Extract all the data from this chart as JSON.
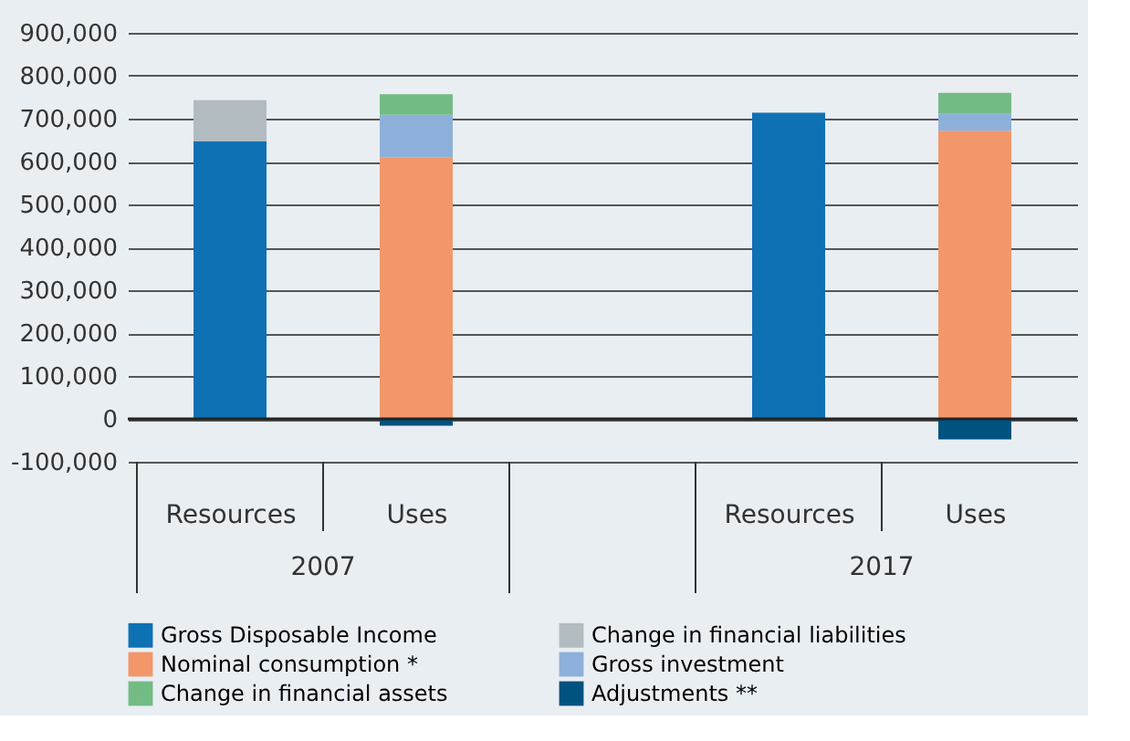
{
  "chart_data": {
    "type": "bar",
    "stacked": true,
    "categories": [
      "Resources",
      "Uses",
      null,
      "Resources",
      "Uses"
    ],
    "series": [
      {
        "name": "Gross Disposable Income",
        "color": "#0e71b4",
        "values": [
          647000,
          null,
          null,
          714000,
          null
        ]
      },
      {
        "name": "Change in financial liabilities",
        "color": "#b2bcc0",
        "values": [
          96000,
          null,
          null,
          null,
          null
        ]
      },
      {
        "name": "Nominal consumption *",
        "color": "#f2976a",
        "values": [
          null,
          610000,
          null,
          null,
          672000
        ]
      },
      {
        "name": "Gross investment",
        "color": "#8db0da",
        "values": [
          null,
          99000,
          null,
          null,
          39000
        ]
      },
      {
        "name": "Change in financial assets",
        "color": "#73bb84",
        "values": [
          null,
          48000,
          null,
          null,
          49000
        ]
      },
      {
        "name": "Adjustments **",
        "color": "#00527f",
        "values": [
          null,
          -16000,
          null,
          null,
          -48000
        ]
      }
    ],
    "annotations": [
      "2007",
      "2017"
    ],
    "ylim": [
      -100000,
      900000
    ],
    "yticks": [
      {
        "value": -100000,
        "label": "-100,000"
      },
      0,
      {
        "value": 100000,
        "label": "100,000"
      },
      {
        "value": 200000,
        "label": "200,000"
      },
      {
        "value": 300000,
        "label": "300,000"
      },
      {
        "value": 400000,
        "label": "400,000"
      },
      {
        "value": 500000,
        "label": "500,000"
      },
      {
        "value": 600000,
        "label": "600,000"
      },
      {
        "value": 700000,
        "label": "700,000"
      },
      {
        "value": 800000,
        "label": "800,000"
      },
      {
        "value": 900000,
        "label": "900,000"
      }
    ],
    "grid": "y",
    "legend": "bottom"
  }
}
